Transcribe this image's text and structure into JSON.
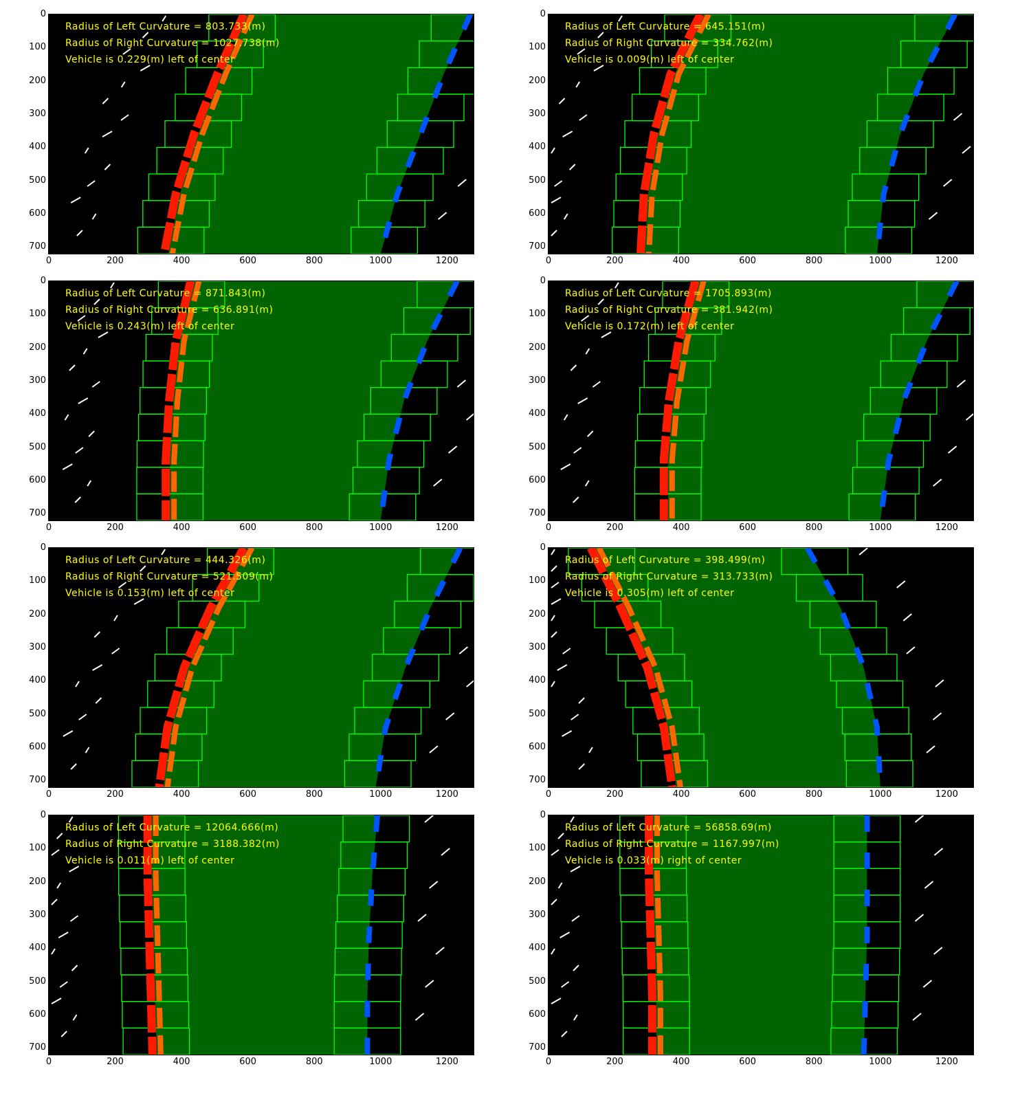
{
  "figure": {
    "axes": {
      "x_ticks": [
        "0",
        "200",
        "400",
        "600",
        "800",
        "1000",
        "1200"
      ],
      "y_ticks": [
        "0",
        "100",
        "200",
        "300",
        "400",
        "500",
        "600",
        "700"
      ],
      "xlim": [
        0,
        1280
      ],
      "ylim": [
        720,
        0
      ]
    },
    "colors": {
      "background": "#000000",
      "lane_fill": "#006400",
      "window": "#00ff00",
      "left_pixels": "#ff1a00",
      "left_fit": "#ff6600",
      "right_pixels": "#0055ff",
      "binary": "#ffffff",
      "text": "#ffff00"
    },
    "panels": [
      {
        "lines": [
          "Radius of Left Curvature = 803.733(m)",
          "Radius of Right Curvature = 1027.738(m)",
          "Vehicle is 0.229(m) left of center"
        ],
        "left_x": [
          600,
          520,
          450,
          395,
          360
        ],
        "right_x": [
          1270,
          1190,
          1120,
          1050,
          1000
        ]
      },
      {
        "lines": [
          "Radius of Left Curvature = 645.151(m)",
          "Radius of Right Curvature = 334.762(m)",
          "Vehicle is 0.009(m) left of center"
        ],
        "left_x": [
          470,
          380,
          330,
          300,
          290
        ],
        "right_x": [
          1225,
          1130,
          1060,
          1010,
          990
        ]
      },
      {
        "lines": [
          "Radius of Left Curvature = 871.843(m)",
          "Radius of Right Curvature = 636.891(m)",
          "Vehicle is 0.243(m) left of center"
        ],
        "left_x": [
          440,
          395,
          375,
          365,
          365
        ],
        "right_x": [
          1230,
          1140,
          1070,
          1025,
          1000
        ]
      },
      {
        "lines": [
          "Radius of Left Curvature = 1705.893(m)",
          "Radius of Right Curvature = 381.942(m)",
          "Vehicle is 0.172(m) left of center"
        ],
        "left_x": [
          455,
          405,
          375,
          360,
          360
        ],
        "right_x": [
          1230,
          1140,
          1070,
          1025,
          1000
        ]
      },
      {
        "lines": [
          "Radius of Left Curvature = 444.326(m)",
          "Radius of Right Curvature = 521.509(m)",
          "Vehicle is 0.153(m) left of center"
        ],
        "left_x": [
          600,
          500,
          420,
          370,
          345
        ],
        "right_x": [
          1240,
          1150,
          1075,
          1015,
          985
        ]
      },
      {
        "lines": [
          "Radius of Left Curvature = 398.499(m)",
          "Radius of Right Curvature = 313.733(m)",
          "Vehicle is 0.305(m) left of center"
        ],
        "left_x": [
          140,
          230,
          310,
          360,
          385
        ],
        "right_x": [
          780,
          880,
          950,
          990,
          1000
        ]
      },
      {
        "lines": [
          "Radius of Left Curvature = 12064.666(m)",
          "Radius of Right Curvature = 3188.382(m)",
          "Vehicle is 0.011(m) left of center"
        ],
        "left_x": [
          310,
          310,
          315,
          320,
          325
        ],
        "right_x": [
          990,
          975,
          965,
          960,
          960
        ]
      },
      {
        "lines": [
          "Radius of Left Curvature = 56858.69(m)",
          "Radius of Right Curvature = 1167.997(m)",
          "Vehicle is 0.033(m) right of center"
        ],
        "left_x": [
          315,
          315,
          320,
          325,
          325
        ],
        "right_x": [
          960,
          960,
          960,
          955,
          950
        ]
      }
    ]
  }
}
